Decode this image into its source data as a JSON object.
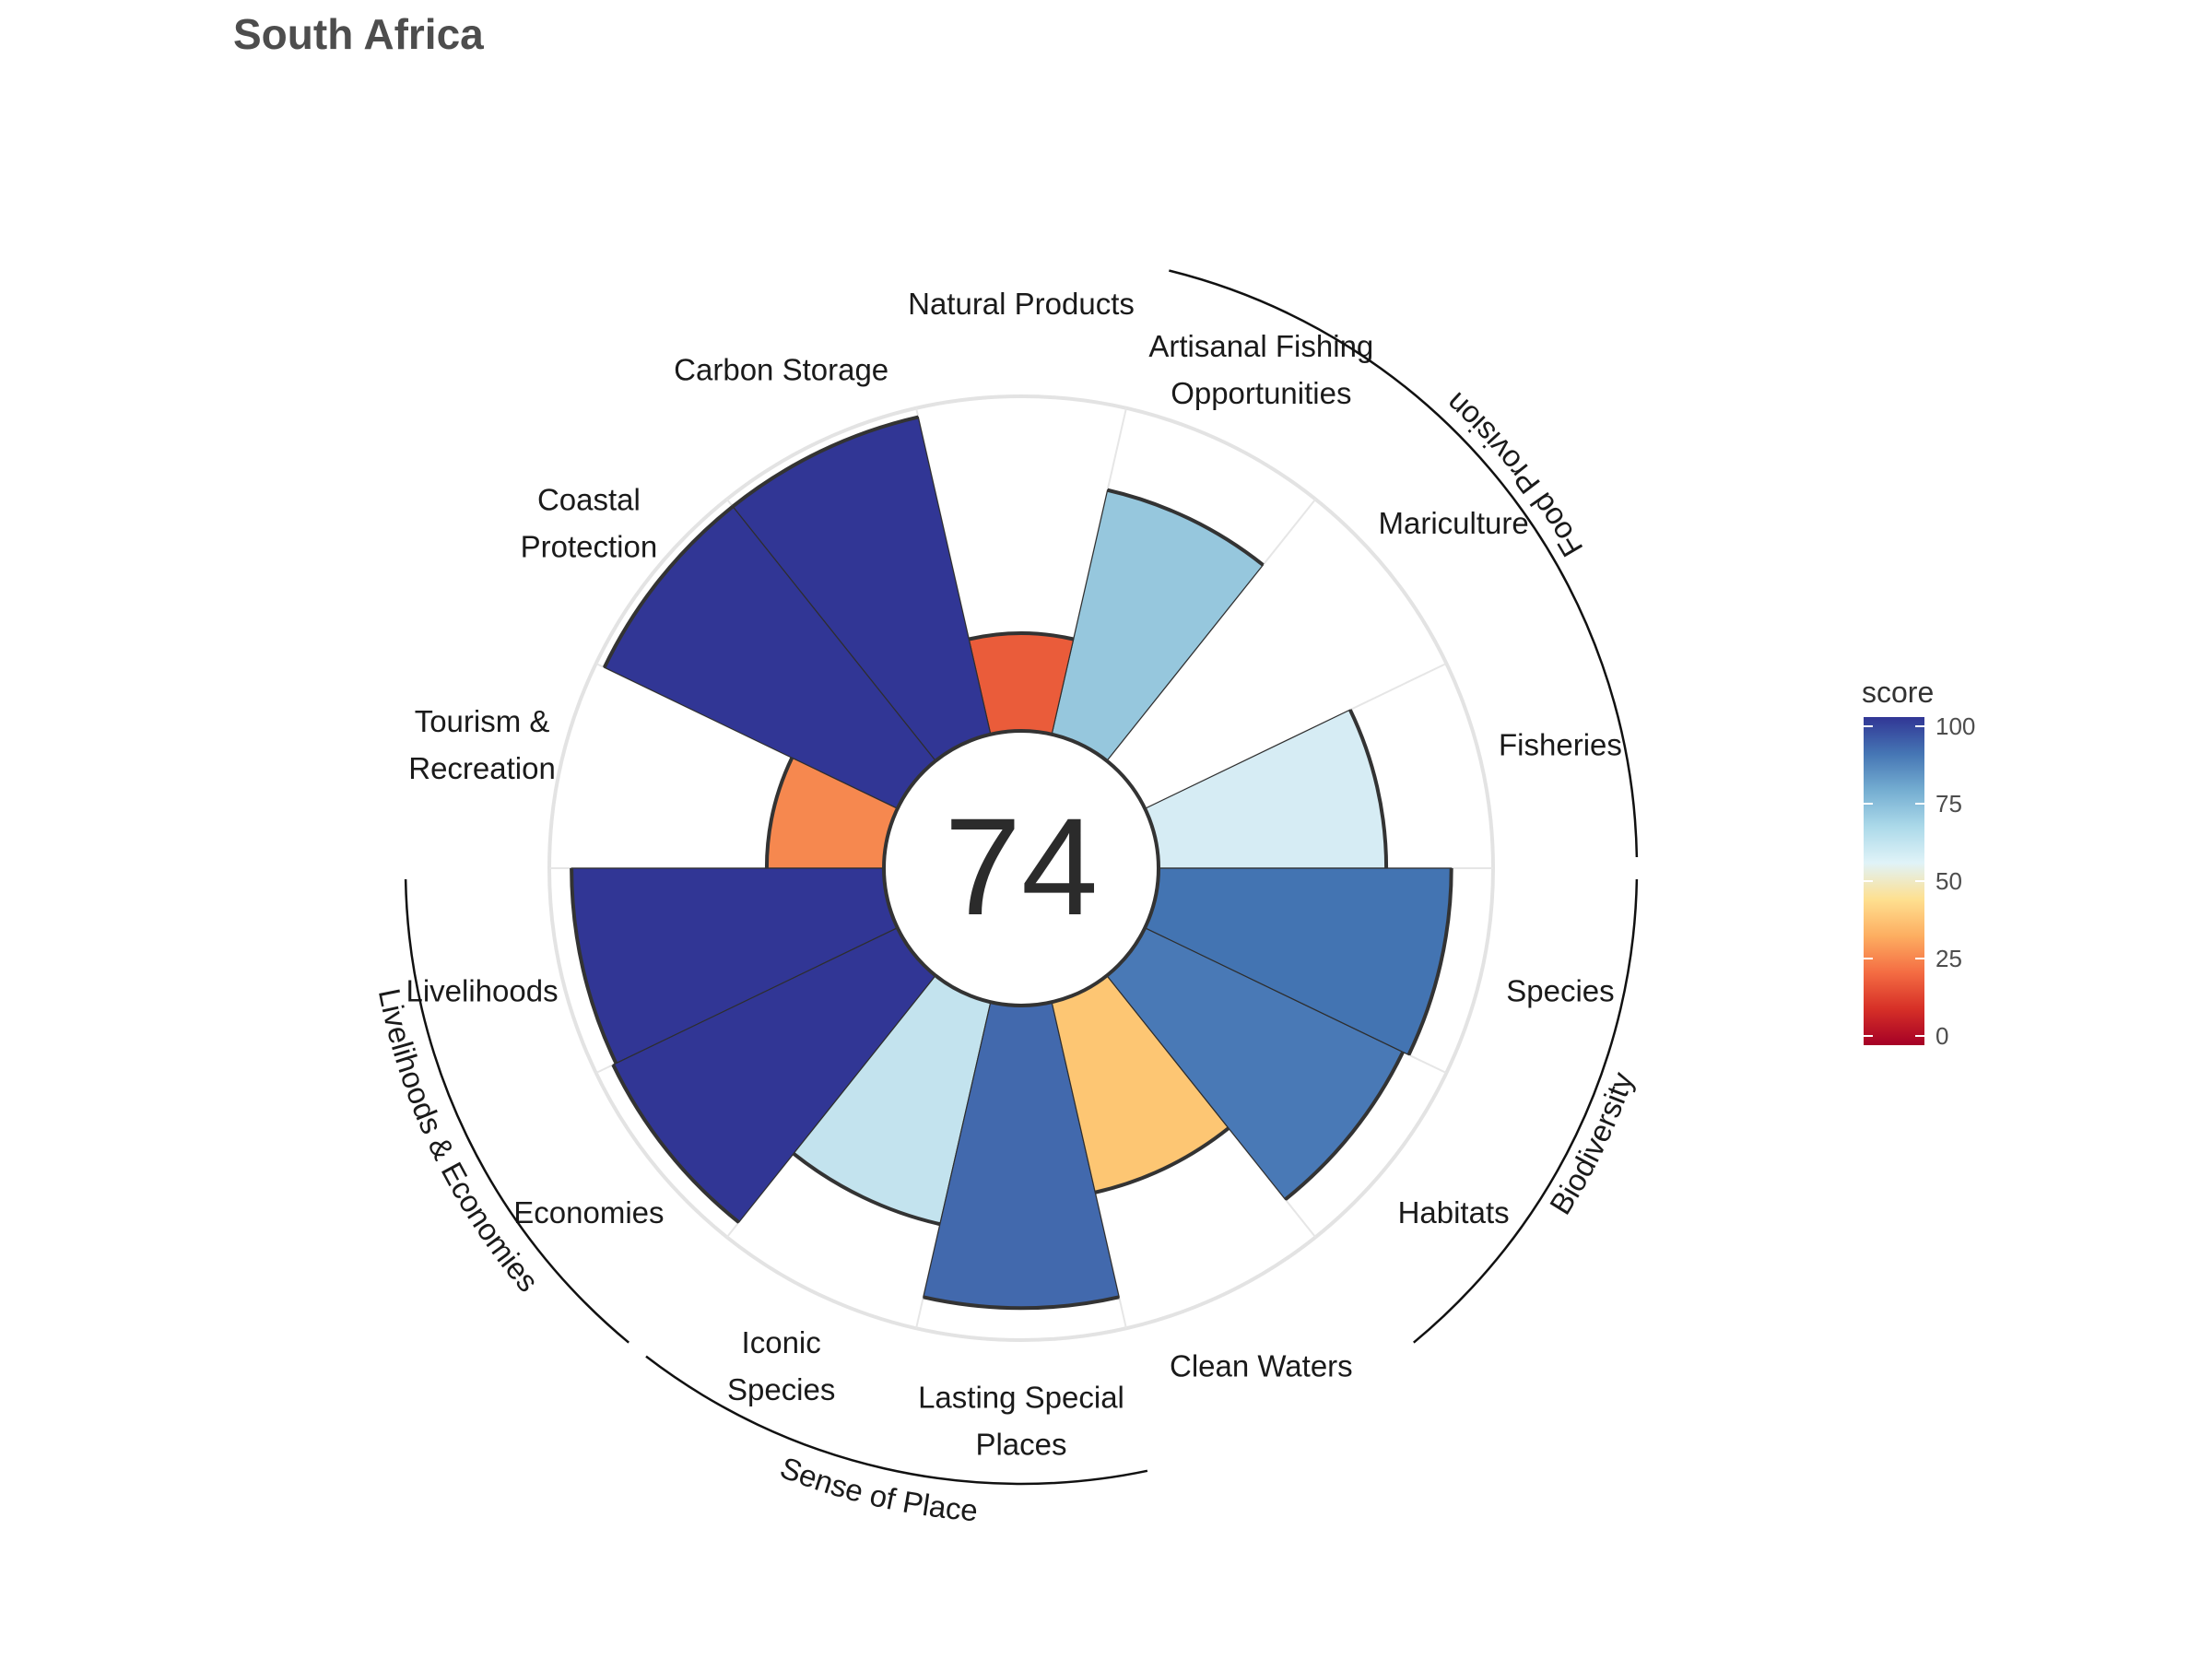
{
  "title": "South Africa",
  "center_score": "74",
  "chart_data": {
    "type": "polar-bar",
    "title": "South Africa",
    "overall_index": 74,
    "score_range": [
      0,
      100
    ],
    "goals": [
      {
        "label": [
          "Fisheries"
        ],
        "score": 70,
        "color": "#d6ecf4"
      },
      {
        "label": [
          "Mariculture"
        ],
        "score": 0,
        "color": "#ffffff"
      },
      {
        "label": [
          "Artisanal Fishing",
          "Opportunities"
        ],
        "score": 77,
        "color": "#96c7dd"
      },
      {
        "label": [
          "Natural Products"
        ],
        "score": 30,
        "color": "#ea5c3a"
      },
      {
        "label": [
          "Carbon Storage"
        ],
        "score": 100,
        "color": "#313695"
      },
      {
        "label": [
          "Coastal",
          "Protection"
        ],
        "score": 100,
        "color": "#313695"
      },
      {
        "label": [
          "Tourism &",
          "Recreation"
        ],
        "score": 36,
        "color": "#f6884f"
      },
      {
        "label": [
          "Livelihoods"
        ],
        "score": 96,
        "color": "#313695"
      },
      {
        "label": [
          "Economies"
        ],
        "score": 97,
        "color": "#313695"
      },
      {
        "label": [
          "Iconic",
          "Species"
        ],
        "score": 70,
        "color": "#c3e3ee"
      },
      {
        "label": [
          "Lasting Special",
          "Places"
        ],
        "score": 93,
        "color": "#4269ad"
      },
      {
        "label": [
          "Clean Waters"
        ],
        "score": 60,
        "color": "#fdc673"
      },
      {
        "label": [
          "Habitats"
        ],
        "score": 88,
        "color": "#4979b6"
      },
      {
        "label": [
          "Species"
        ],
        "score": 90,
        "color": "#4374b2"
      }
    ],
    "groups": [
      {
        "name": "Food Provision"
      },
      {
        "name": "Biodiversity"
      },
      {
        "name": "Sense of Place"
      },
      {
        "name": "Livelihoods & Economies"
      }
    ],
    "legend": {
      "title": "score",
      "ticks": [
        "100",
        "75",
        "50",
        "25",
        "0"
      ],
      "colors": [
        "#a50026",
        "#d73027",
        "#f46d43",
        "#fdae61",
        "#fee090",
        "#e0f3f8",
        "#abd9e9",
        "#74add1",
        "#4575b4",
        "#313695"
      ]
    }
  }
}
